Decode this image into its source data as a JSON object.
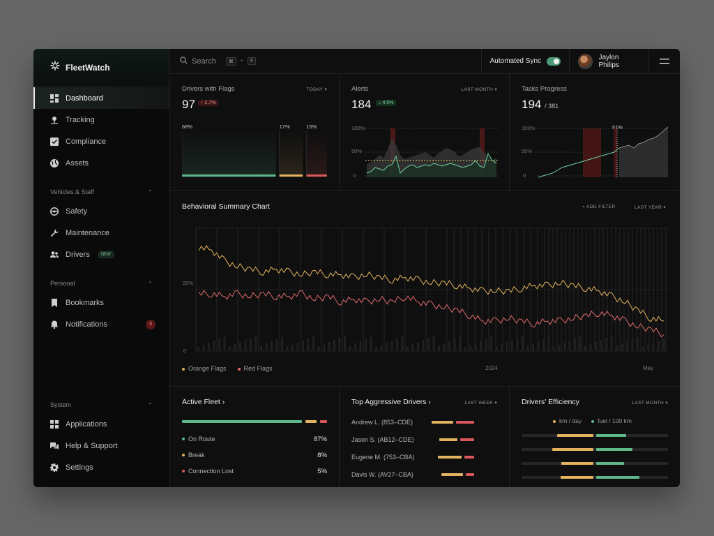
{
  "brand": {
    "name": "FleetWatch"
  },
  "sidebar": {
    "main": [
      {
        "label": "Dashboard",
        "icon": "dashboard-icon"
      },
      {
        "label": "Tracking",
        "icon": "pin-icon"
      },
      {
        "label": "Compliance",
        "icon": "checkbox-icon"
      },
      {
        "label": "Assets",
        "icon": "globe-icon"
      }
    ],
    "vehicles": {
      "title": "Vehicles & Staff",
      "items": [
        {
          "label": "Safety",
          "icon": "steering-wheel-icon"
        },
        {
          "label": "Maintenance",
          "icon": "wrench-icon"
        },
        {
          "label": "Drivers",
          "icon": "users-icon",
          "badge": "NEW"
        }
      ]
    },
    "personal": {
      "title": "Personal",
      "items": [
        {
          "label": "Bookmarks",
          "icon": "bookmark-icon"
        },
        {
          "label": "Notifications",
          "icon": "bell-icon",
          "count": "3"
        }
      ]
    },
    "system": {
      "title": "System",
      "items": [
        {
          "label": "Applications",
          "icon": "grid-icon"
        },
        {
          "label": "Help & Support",
          "icon": "chat-icon"
        },
        {
          "label": "Settings",
          "icon": "gear-icon"
        }
      ]
    }
  },
  "topbar": {
    "search_placeholder": "Search",
    "shortcut_key1": "⌘",
    "shortcut_plus": "+",
    "shortcut_key2": "F",
    "sync_label": "Automated Sync",
    "sync_on": true,
    "user_name": "Jaylon Philips"
  },
  "cards": {
    "drivers_flags": {
      "title": "Drivers with Flags",
      "filter": "TODAY",
      "value": "97",
      "delta": "↑ 2.7%",
      "bars": [
        {
          "label": "68%",
          "value": 68,
          "color": "#5fb88a"
        },
        {
          "label": "17%",
          "value": 17,
          "color": "#e2b25e"
        },
        {
          "label": "15%",
          "value": 15,
          "color": "#d9575a"
        }
      ]
    },
    "alerts": {
      "title": "Alerts",
      "filter": "LAST MONTH",
      "value": "184",
      "delta": "↓ 4.5%",
      "yticks": [
        "100%",
        "50%",
        "0"
      ]
    },
    "tasks": {
      "title": "Tasks Progress",
      "filter": "",
      "value": "194",
      "total": "/ 381",
      "marker": "51%",
      "yticks": [
        "100%",
        "50%",
        "0"
      ]
    }
  },
  "behavioral": {
    "title": "Behavioral Summary Chart",
    "add_filter": "+ ADD FILTER",
    "range": "LAST YEAR",
    "y_labels": [
      "25%",
      "0"
    ],
    "x_labels": [
      "2024",
      "May"
    ],
    "legend": [
      {
        "label": "Orange Flags",
        "color": "#e2b25e"
      },
      {
        "label": "Red Flags",
        "color": "#e06a6a"
      }
    ]
  },
  "chart_data": {
    "type": "line",
    "title": "Behavioral Summary Chart",
    "series": [
      {
        "name": "Orange Flags",
        "values": [
          38,
          37,
          33,
          31,
          30,
          29,
          30,
          29,
          28,
          29,
          28,
          28,
          27,
          28,
          27,
          26,
          27,
          26,
          25,
          25,
          24,
          23,
          22,
          22,
          22,
          23,
          24,
          24,
          25,
          24,
          23,
          22,
          20,
          18,
          15,
          12,
          11
        ]
      },
      {
        "name": "Red Flags",
        "values": [
          21,
          21,
          20,
          21,
          20,
          21,
          20,
          20,
          21,
          19,
          20,
          18,
          19,
          18,
          19,
          18,
          20,
          18,
          17,
          16,
          15,
          13,
          11,
          11,
          12,
          11,
          10,
          11,
          11,
          12,
          13,
          14,
          13,
          11,
          9,
          8,
          6
        ]
      }
    ],
    "x_labels": [
      "2024",
      "May"
    ],
    "y_labels": [
      "25%",
      "0"
    ]
  },
  "bottom": {
    "active_fleet": {
      "title": "Active Fleet ›",
      "bar": [
        {
          "value": 87,
          "color": "#5fb88a"
        },
        {
          "value": 8,
          "color": "#e2b25e"
        },
        {
          "value": 5,
          "color": "#d9575a"
        }
      ],
      "items": [
        {
          "label": "On Route",
          "value": "87%",
          "color": "#5fb88a"
        },
        {
          "label": "Break",
          "value": "8%",
          "color": "#e2b25e"
        },
        {
          "label": "Connection Lost",
          "value": "5%",
          "color": "#d9575a"
        }
      ]
    },
    "aggressive": {
      "title": "Top Aggressive Drivers ›",
      "filter": "LAST WEEK",
      "drivers": [
        {
          "name": "Andrew L. (853–CDE)",
          "orange": 0.55,
          "red": 0.45
        },
        {
          "name": "Jason S. (AB12–CDE)",
          "orange": 0.45,
          "red": 0.35
        },
        {
          "name": "Eugene M. (753–CBA)",
          "orange": 0.6,
          "red": 0.25
        },
        {
          "name": "Davis W. (AV27–CBA)",
          "orange": 0.55,
          "red": 0.2
        }
      ]
    },
    "efficiency": {
      "title": "Drivers' Efficiency",
      "filter": "LAST MONTH",
      "legend": [
        {
          "label": "km / day",
          "color": "#e2b25e"
        },
        {
          "label": "fuel / 100 km",
          "color": "#5fb88a"
        }
      ],
      "rows": [
        {
          "km": 0.55,
          "fuel": 0.45
        },
        {
          "km": 0.62,
          "fuel": 0.55
        },
        {
          "km": 0.48,
          "fuel": 0.42
        },
        {
          "km": 0.5,
          "fuel": 0.65
        }
      ]
    }
  }
}
